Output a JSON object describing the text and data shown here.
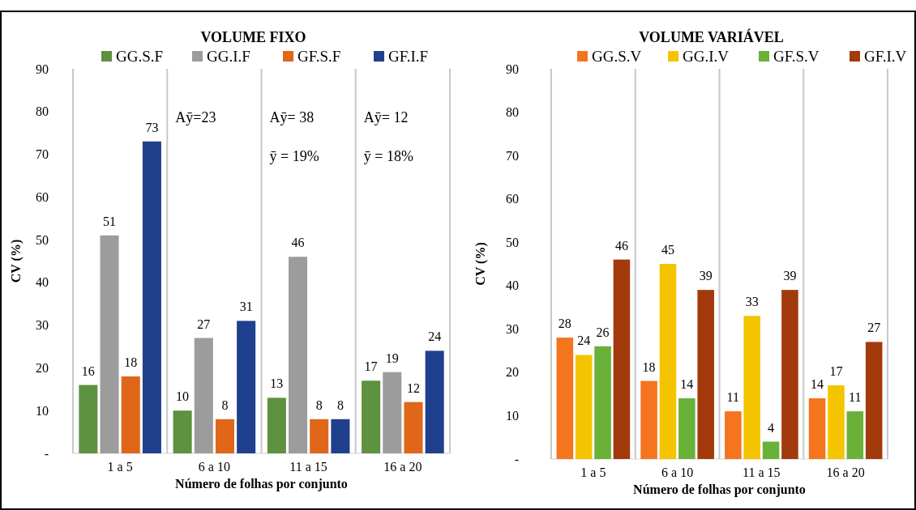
{
  "chart_data": [
    {
      "type": "bar",
      "title": "VOLUME FIXO",
      "xlabel": "Número de folhas por conjunto",
      "ylabel": "CV (%)",
      "categories": [
        "1 a 5",
        "6 a 10",
        "11 a 15",
        "16 a 20"
      ],
      "series": [
        {
          "name": "GG.S.F",
          "color": "#5e9140",
          "values": [
            16,
            10,
            13,
            17
          ]
        },
        {
          "name": "GG.I.F",
          "color": "#9c9c9c",
          "values": [
            51,
            27,
            46,
            19
          ]
        },
        {
          "name": "GF.S.F",
          "color": "#e0661a",
          "values": [
            18,
            8,
            8,
            12
          ]
        },
        {
          "name": "GF.I.F",
          "color": "#1f408c",
          "values": [
            73,
            31,
            8,
            24
          ]
        }
      ],
      "ylim": [
        0,
        90
      ],
      "yticks": [
        {
          "value": 0,
          "label": "-"
        },
        10,
        20,
        30,
        40,
        50,
        60,
        70,
        80,
        90
      ],
      "grid": "x",
      "legend": "top",
      "data_labels": true,
      "annotations": [
        "Aȳ=23",
        "Aȳ= 38",
        "ȳ = 19%",
        "Aȳ= 12",
        "ȳ = 18%"
      ]
    },
    {
      "type": "bar",
      "title": "VOLUME VARIÁVEL",
      "xlabel": "Número de folhas por conjunto",
      "ylabel": "CV (%)",
      "categories": [
        "1 a 5",
        "6 a 10",
        "11 a 15",
        "16 a 20"
      ],
      "series": [
        {
          "name": "GG.S.V",
          "color": "#f5741e",
          "values": [
            28,
            18,
            11,
            14
          ]
        },
        {
          "name": "GG.I.V",
          "color": "#f5c400",
          "values": [
            24,
            45,
            33,
            17
          ]
        },
        {
          "name": "GF.S.V",
          "color": "#6ab13a",
          "values": [
            26,
            14,
            4,
            11
          ]
        },
        {
          "name": "GF.I.V",
          "color": "#a33a0c",
          "values": [
            46,
            39,
            39,
            27
          ]
        }
      ],
      "ylim": [
        0,
        90
      ],
      "yticks": [
        {
          "value": 0,
          "label": "-"
        },
        10,
        20,
        30,
        40,
        50,
        60,
        70,
        80,
        90
      ],
      "grid": "x",
      "legend": "top",
      "data_labels": true
    }
  ]
}
